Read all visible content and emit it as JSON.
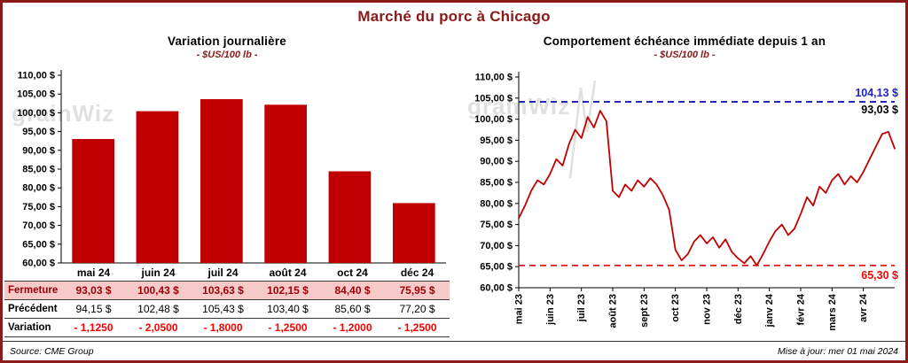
{
  "title": "Marché du porc à Chicago",
  "watermark": "grainWiz",
  "chart_data": [
    {
      "type": "bar",
      "title": "Variation journalière",
      "subtitle": "- $US/100 lb -",
      "categories": [
        "mai 24",
        "juin 24",
        "juil 24",
        "août 24",
        "oct 24",
        "déc 24"
      ],
      "values": [
        93.03,
        100.43,
        103.63,
        102.15,
        84.4,
        75.95
      ],
      "ylim": [
        60,
        110
      ],
      "ytick_step": 5,
      "ytick_format": "0,00 $",
      "bar_color": "#C00000",
      "grid": false,
      "legend": "none"
    },
    {
      "type": "line",
      "title": "Comportement échéance immédiate depuis 1 an",
      "subtitle": "- $US/100 lb -",
      "x_tick_labels": [
        "mai 23",
        "juin 23",
        "juil 23",
        "août 23",
        "sept 23",
        "oct 23",
        "nov 23",
        "déc 23",
        "janv 24",
        "févr 24",
        "mars 24",
        "avr 24"
      ],
      "values": [
        76.5,
        79.5,
        83,
        85.5,
        84.5,
        87,
        90.5,
        89,
        94,
        97.5,
        95.5,
        100.5,
        98,
        102,
        99.5,
        83,
        81.5,
        84.5,
        83,
        85.5,
        84,
        86,
        84.5,
        82,
        78.5,
        69,
        66.5,
        68,
        71,
        72.5,
        70.5,
        72,
        69.5,
        71.5,
        68.5,
        67,
        65.8,
        67.5,
        65.3,
        68,
        71,
        73.5,
        75,
        72.5,
        74,
        77.5,
        81.5,
        79.5,
        84,
        82.5,
        85.5,
        87,
        84.5,
        86.5,
        85,
        87.5,
        90.5,
        93.5,
        96.5,
        97,
        93.03
      ],
      "ylim": [
        60,
        110
      ],
      "ytick_step": 5,
      "line_color": "#C00000",
      "grid": false,
      "legend": "none",
      "ref_lines": [
        {
          "value": 104.13,
          "label": "104,13 $",
          "color": "#2222CC",
          "style": "dashed",
          "label_position": "above"
        },
        {
          "value": 65.3,
          "label": "65,30 $",
          "color": "#FF0000",
          "style": "dashed",
          "label_position": "below"
        }
      ],
      "end_label": {
        "value": 93.03,
        "label": "93,03 $",
        "color": "#000000"
      }
    }
  ],
  "table": {
    "rows": [
      {
        "style": "fermeture",
        "label": "Fermeture",
        "values": [
          "93,03  $",
          "100,43  $",
          "103,63  $",
          "102,15  $",
          "84,40  $",
          "75,95  $"
        ]
      },
      {
        "style": "precedent",
        "label": "Précédent",
        "values": [
          "94,15  $",
          "102,48  $",
          "105,43  $",
          "103,40  $",
          "85,60  $",
          "77,20  $"
        ]
      },
      {
        "style": "variation",
        "label": "Variation",
        "values": [
          "- 1,1250",
          "- 2,0500",
          "- 1,8000",
          "- 1,2500",
          "- 1,2000",
          "- 1,2500"
        ]
      }
    ]
  },
  "footer": {
    "source": "Source: CME Group",
    "updated": "Mise à jour: mer 01 mai 2024"
  }
}
